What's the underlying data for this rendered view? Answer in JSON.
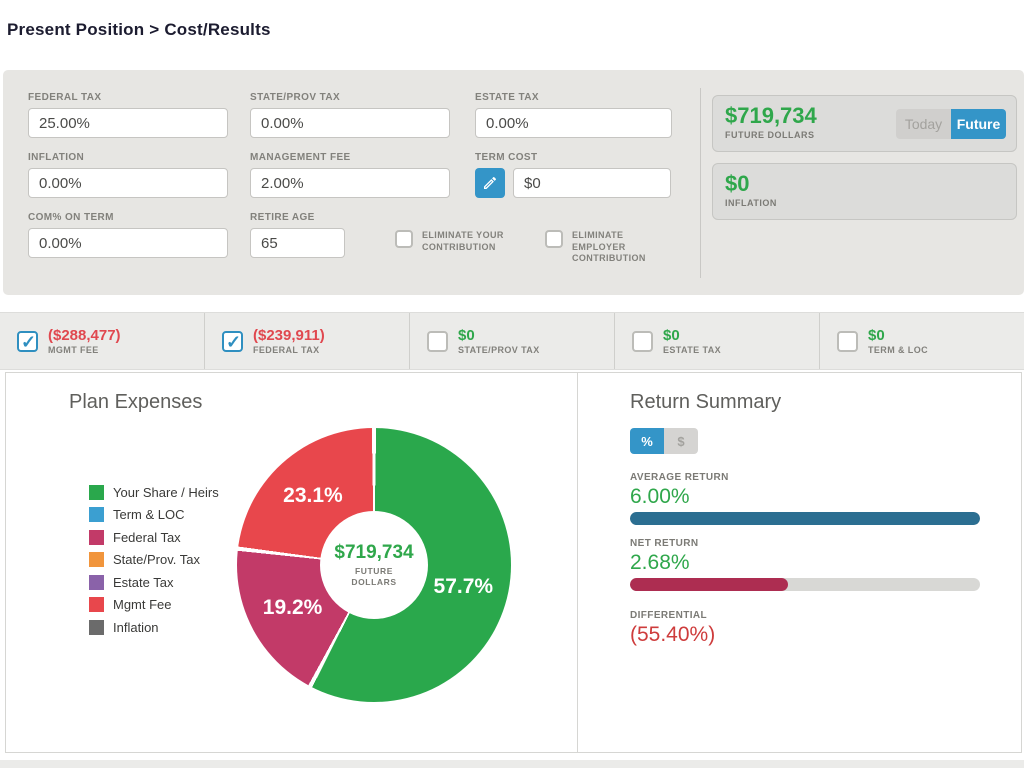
{
  "breadcrumb": "Present Position > Cost/Results",
  "colors": {
    "green": "#2fa74b",
    "red": "#e0484f",
    "diff_red": "#ce3c3c",
    "accent_blue": "#3495c8",
    "avg_bar": "#2b6e91",
    "net_bar": "#ad2d51"
  },
  "settings_panel": {
    "fields": [
      {
        "label": "FEDERAL TAX",
        "value": "25.00%"
      },
      {
        "label": "STATE/PROV TAX",
        "value": "0.00%"
      },
      {
        "label": "ESTATE TAX",
        "value": "0.00%"
      },
      {
        "label": "INFLATION",
        "value": "0.00%"
      },
      {
        "label": "MANAGEMENT FEE",
        "value": "2.00%"
      },
      {
        "label": "TERM COST",
        "value": "$0"
      },
      {
        "label": "COM% ON TERM",
        "value": "0.00%"
      },
      {
        "label": "RETIRE AGE",
        "value": "65"
      }
    ],
    "contribution_checkboxes": [
      {
        "label": "ELIMINATE YOUR CONTRIBUTION",
        "checked": false
      },
      {
        "label": "ELIMINATE EMPLOYER CONTRIBUTION",
        "checked": false
      }
    ]
  },
  "result_cards": {
    "future_dollars": {
      "value": "$719,734",
      "label": "FUTURE DOLLARS"
    },
    "view_toggle": {
      "options": [
        "Today",
        "Future"
      ],
      "active": "Future"
    },
    "inflation": {
      "value": "$0",
      "label": "INFLATION"
    }
  },
  "expense_toggle_bar": {
    "items": [
      {
        "value": "($288,477)",
        "label": "MGMT FEE",
        "checked": true,
        "value_color": "#e0484f"
      },
      {
        "value": "($239,911)",
        "label": "FEDERAL TAX",
        "checked": true,
        "value_color": "#e0484f"
      },
      {
        "value": "$0",
        "label": "STATE/PROV TAX",
        "checked": false,
        "value_color": "#2fa74b"
      },
      {
        "value": "$0",
        "label": "ESTATE TAX",
        "checked": false,
        "value_color": "#2fa74b"
      },
      {
        "value": "$0",
        "label": "TERM & LOC",
        "checked": false,
        "value_color": "#2fa74b"
      }
    ]
  },
  "plan_expenses": {
    "title": "Plan Expenses",
    "center_value": "$719,734",
    "center_label_line1": "FUTURE",
    "center_label_line2": "DOLLARS"
  },
  "return_summary": {
    "title": "Return Summary",
    "unit_toggle": {
      "options": [
        "%",
        "$"
      ],
      "active": "%"
    }
  },
  "chart_data": [
    {
      "type": "pie",
      "title": "Plan Expenses",
      "donut": true,
      "center_value": "$719,734",
      "center_label": "FUTURE DOLLARS",
      "segments_clockwise_from_top": true,
      "segments": [
        {
          "name": "Your Share / Heirs",
          "value": 57.7,
          "label": "57.7%",
          "color": "#2aa84c"
        },
        {
          "name": "Federal Tax",
          "value": 19.2,
          "label": "19.2%",
          "color": "#c23a68"
        },
        {
          "name": "Mgmt Fee",
          "value": 23.1,
          "label": "23.1%",
          "color": "#e8474c"
        }
      ],
      "legend": [
        {
          "name": "Your Share / Heirs",
          "color": "#2aa84c"
        },
        {
          "name": "Term & LOC",
          "color": "#3b9fd1"
        },
        {
          "name": "Federal Tax",
          "color": "#c23a68"
        },
        {
          "name": "State/Prov. Tax",
          "color": "#f1953c"
        },
        {
          "name": "Estate Tax",
          "color": "#8a62a9"
        },
        {
          "name": "Mgmt Fee",
          "color": "#e8474c"
        },
        {
          "name": "Inflation",
          "color": "#6b6b6b"
        }
      ],
      "legend_position": "left"
    },
    {
      "type": "bar",
      "title": "Return Summary",
      "orientation": "horizontal",
      "unit": "%",
      "metrics": [
        {
          "label": "AVERAGE RETURN",
          "value": "6.00%",
          "numeric": 6.0,
          "fill_pct": 100,
          "color": "#2b6e91"
        },
        {
          "label": "NET RETURN",
          "value": "2.68%",
          "numeric": 2.68,
          "fill_pct": 45,
          "color": "#ad2d51"
        },
        {
          "label": "DIFFERENTIAL",
          "value": "(55.40%)",
          "numeric": -55.4,
          "fill_pct": null,
          "color": "#ce3c3c"
        }
      ]
    }
  ]
}
